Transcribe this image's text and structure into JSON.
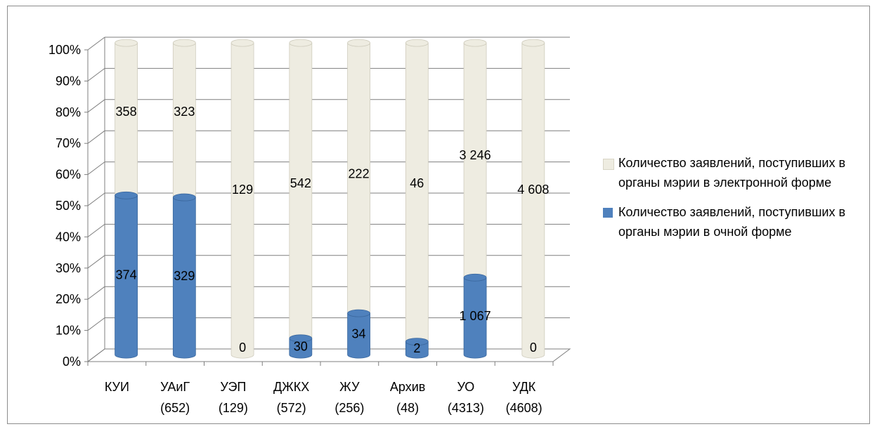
{
  "chart_data": {
    "type": "bar",
    "stacked": "percent",
    "categories": [
      "КУИ",
      "УАиГ\n(652)",
      "УЭП\n(129)",
      "ДЖКХ\n(572)",
      "ЖУ\n(256)",
      "Архив\n(48)",
      "УО\n(4313)",
      "УДК\n(4608)"
    ],
    "series": [
      {
        "name": "Количество заявлений, поступивших в органы мэрии в очной форме",
        "color": "#4F81BD",
        "values": [
          374,
          329,
          0,
          30,
          34,
          2,
          1067,
          0
        ],
        "labels": [
          "374",
          "329",
          "0",
          "30",
          "34",
          "2",
          "1 067",
          "0"
        ]
      },
      {
        "name": "Количество заявлений, поступивших в органы мэрии в электронной форме",
        "color": "#EEECE1",
        "values": [
          358,
          323,
          129,
          542,
          222,
          46,
          3246,
          4608
        ],
        "labels": [
          "358",
          "323",
          "129",
          "542",
          "222",
          "46",
          "3 246",
          "4 608"
        ]
      }
    ],
    "y_ticks": [
      "0%",
      "10%",
      "20%",
      "30%",
      "40%",
      "50%",
      "60%",
      "70%",
      "80%",
      "90%",
      "100%"
    ],
    "ylim": [
      0,
      100
    ],
    "grid": true,
    "legend_position": "right"
  }
}
